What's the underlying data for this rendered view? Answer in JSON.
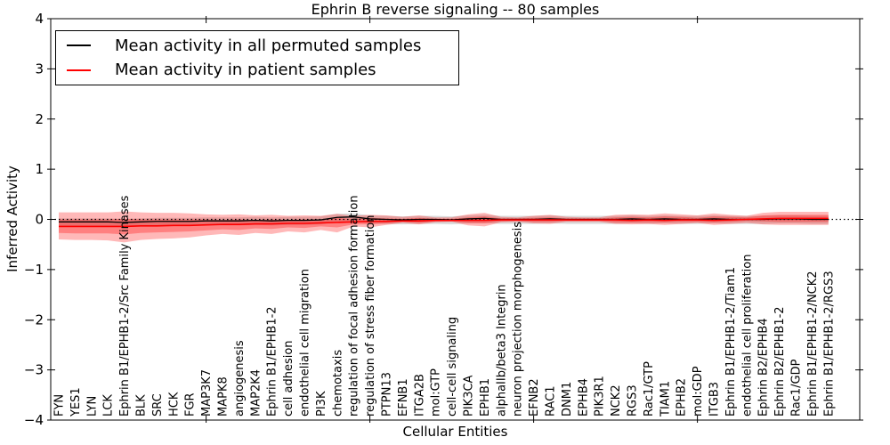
{
  "title": "Ephrin B reverse signaling -- 80 samples",
  "axes": {
    "xlabel": "Cellular Entities",
    "ylabel": "Inferred Activity",
    "ylim": [
      -4,
      4
    ],
    "yticks": [
      4,
      3,
      2,
      1,
      0,
      -1,
      -2,
      -3,
      -4
    ]
  },
  "legend": {
    "items": [
      {
        "label": "Mean activity in all permuted samples",
        "color": "#000000"
      },
      {
        "label": "Mean activity in patient samples",
        "color": "#ff0000"
      }
    ]
  },
  "chart_data": {
    "type": "line",
    "title": "Ephrin B reverse signaling -- 80 samples",
    "xlabel": "Cellular Entities",
    "ylabel": "Inferred Activity",
    "ylim": [
      -4,
      4
    ],
    "grid": false,
    "legend_position": "upper left",
    "zero_line": {
      "y": 0,
      "style": "dotted",
      "color": "#000000"
    },
    "major_tick_indices": [
      9,
      19,
      29,
      39
    ],
    "categories": [
      "FYN",
      "YES1",
      "LYN",
      "LCK",
      "Ephrin B1/EPHB1-2/Src Family Kinases",
      "BLK",
      "SRC",
      "HCK",
      "FGR",
      "MAP3K7",
      "MAPK8",
      "angiogenesis",
      "MAP2K4",
      "Ephrin B1/EPHB1-2",
      "cell adhesion",
      "endothelial cell migration",
      "PI3K",
      "chemotaxis",
      "regulation of focal adhesion formation",
      "regulation of stress fiber formation",
      "PTPN13",
      "EFNB1",
      "ITGA2B",
      "mol:GTP",
      "cell-cell signaling",
      "PIK3CA",
      "EPHB1",
      "alphaIIb/beta3 Integrin",
      "neuron projection morphogenesis",
      "EFNB2",
      "RAC1",
      "DNM1",
      "EPHB4",
      "PIK3R1",
      "NCK2",
      "RGS3",
      "Rac1/GTP",
      "TIAM1",
      "EPHB2",
      "mol:GDP",
      "ITGB3",
      "Ephrin B1/EPHB1-2/Tiam1",
      "endothelial cell proliferation",
      "Ephrin B2/EPHB4",
      "Ephrin B2/EPHB1-2",
      "Rac1/GDP",
      "Ephrin B1/EPHB1-2/NCK2",
      "Ephrin B1/EPHB1-2/RGS3"
    ],
    "series": [
      {
        "name": "Mean activity in all permuted samples",
        "color": "#000000",
        "width": 1.3,
        "values": [
          -0.05,
          -0.05,
          -0.05,
          -0.05,
          -0.06,
          -0.05,
          -0.04,
          -0.04,
          -0.04,
          -0.03,
          -0.03,
          -0.03,
          -0.02,
          -0.03,
          -0.02,
          -0.02,
          -0.01,
          0.04,
          0.05,
          0.01,
          0,
          -0.01,
          0,
          0,
          -0.01,
          0.01,
          0.02,
          0,
          0,
          0,
          0.01,
          0,
          0,
          0,
          0,
          0.01,
          0,
          0.01,
          0,
          0,
          0.01,
          0,
          0,
          0,
          0.01,
          0.01,
          0,
          0
        ]
      },
      {
        "name": "Mean activity in patient samples",
        "color": "#ff0000",
        "width": 1.6,
        "values": [
          -0.14,
          -0.14,
          -0.14,
          -0.14,
          -0.14,
          -0.13,
          -0.13,
          -0.12,
          -0.12,
          -0.11,
          -0.1,
          -0.1,
          -0.09,
          -0.09,
          -0.08,
          -0.08,
          -0.07,
          -0.06,
          -0.05,
          -0.04,
          -0.04,
          -0.03,
          -0.03,
          -0.02,
          -0.02,
          -0.02,
          -0.02,
          -0.01,
          -0.01,
          -0.01,
          -0.01,
          -0.01,
          -0.01,
          -0.01,
          -0.01,
          -0.02,
          -0.01,
          -0.02,
          -0.01,
          -0.01,
          -0.02,
          -0.01,
          0,
          0.01,
          0.02,
          0.02,
          0.02,
          0.02
        ]
      }
    ],
    "bands": [
      {
        "name": "permuted-samples-range",
        "color": "#999999",
        "opacity": 0.35,
        "top": [
          0.02,
          0.02,
          0.02,
          0.02,
          0.01,
          0.02,
          0.03,
          0.03,
          0.03,
          0.04,
          0.04,
          0.04,
          0.05,
          0.04,
          0.05,
          0.05,
          0.06,
          0.11,
          0.12,
          0.08,
          0.07,
          0.06,
          0.07,
          0.07,
          0.06,
          0.08,
          0.09,
          0.07,
          0.07,
          0.07,
          0.08,
          0.07,
          0.07,
          0.07,
          0.07,
          0.08,
          0.07,
          0.08,
          0.07,
          0.07,
          0.08,
          0.07,
          0.07,
          0.07,
          0.08,
          0.08,
          0.07,
          0.07
        ],
        "bottom": [
          -0.14,
          -0.14,
          -0.14,
          -0.14,
          -0.15,
          -0.14,
          -0.13,
          -0.13,
          -0.13,
          -0.12,
          -0.12,
          -0.12,
          -0.11,
          -0.12,
          -0.11,
          -0.11,
          -0.1,
          -0.05,
          -0.04,
          -0.08,
          -0.09,
          -0.1,
          -0.09,
          -0.09,
          -0.1,
          -0.08,
          -0.07,
          -0.09,
          -0.09,
          -0.09,
          -0.08,
          -0.09,
          -0.09,
          -0.09,
          -0.09,
          -0.08,
          -0.09,
          -0.08,
          -0.09,
          -0.09,
          -0.08,
          -0.09,
          -0.09,
          -0.09,
          -0.08,
          -0.08,
          -0.09,
          -0.09
        ]
      },
      {
        "name": "patient-samples-range-outer",
        "color": "#ff0000",
        "opacity": 0.28,
        "top": [
          0.14,
          0.14,
          0.14,
          0.14,
          0.16,
          0.14,
          0.13,
          0.13,
          0.12,
          0.1,
          0.09,
          0.1,
          0.08,
          0.09,
          0.07,
          0.08,
          0.07,
          0.11,
          0.07,
          0.09,
          0.08,
          0.05,
          0.08,
          0.04,
          0.04,
          0.1,
          0.13,
          0.05,
          0.04,
          0.07,
          0.09,
          0.05,
          0.04,
          0.04,
          0.09,
          0.1,
          0.09,
          0.12,
          0.1,
          0.08,
          0.12,
          0.09,
          0.07,
          0.13,
          0.15,
          0.15,
          0.15,
          0.15
        ],
        "bottom": [
          -0.4,
          -0.41,
          -0.41,
          -0.42,
          -0.46,
          -0.41,
          -0.39,
          -0.38,
          -0.36,
          -0.32,
          -0.29,
          -0.31,
          -0.27,
          -0.29,
          -0.24,
          -0.26,
          -0.21,
          -0.26,
          -0.14,
          -0.16,
          -0.11,
          -0.07,
          -0.1,
          -0.06,
          -0.05,
          -0.12,
          -0.14,
          -0.06,
          -0.05,
          -0.08,
          -0.09,
          -0.05,
          -0.05,
          -0.05,
          -0.09,
          -0.1,
          -0.09,
          -0.11,
          -0.09,
          -0.07,
          -0.11,
          -0.09,
          -0.07,
          -0.1,
          -0.11,
          -0.11,
          -0.11,
          -0.11
        ]
      },
      {
        "name": "patient-samples-range-inner",
        "color": "#ff0000",
        "opacity": 0.3,
        "top": [
          0,
          0,
          0,
          0,
          0.01,
          0,
          0,
          0,
          0,
          0,
          -0.01,
          0,
          -0.01,
          0,
          -0.01,
          0,
          0,
          0.03,
          0.01,
          0.03,
          0.02,
          0.01,
          0.03,
          0.01,
          0.01,
          0.04,
          0.06,
          0.02,
          0.02,
          0.03,
          0.04,
          0.02,
          0.02,
          0.02,
          0.04,
          0.05,
          0.04,
          0.06,
          0.05,
          0.03,
          0.06,
          0.05,
          0.04,
          0.08,
          0.09,
          0.09,
          0.09,
          0.09
        ],
        "bottom": [
          -0.27,
          -0.28,
          -0.28,
          -0.28,
          -0.3,
          -0.27,
          -0.26,
          -0.25,
          -0.24,
          -0.22,
          -0.2,
          -0.21,
          -0.18,
          -0.19,
          -0.16,
          -0.17,
          -0.14,
          -0.16,
          -0.1,
          -0.1,
          -0.08,
          -0.05,
          -0.07,
          -0.04,
          -0.04,
          -0.07,
          -0.08,
          -0.04,
          -0.03,
          -0.05,
          -0.05,
          -0.03,
          -0.03,
          -0.03,
          -0.06,
          -0.06,
          -0.06,
          -0.06,
          -0.05,
          -0.05,
          -0.06,
          -0.05,
          -0.03,
          -0.04,
          -0.05,
          -0.05,
          -0.05,
          -0.05
        ]
      }
    ]
  }
}
